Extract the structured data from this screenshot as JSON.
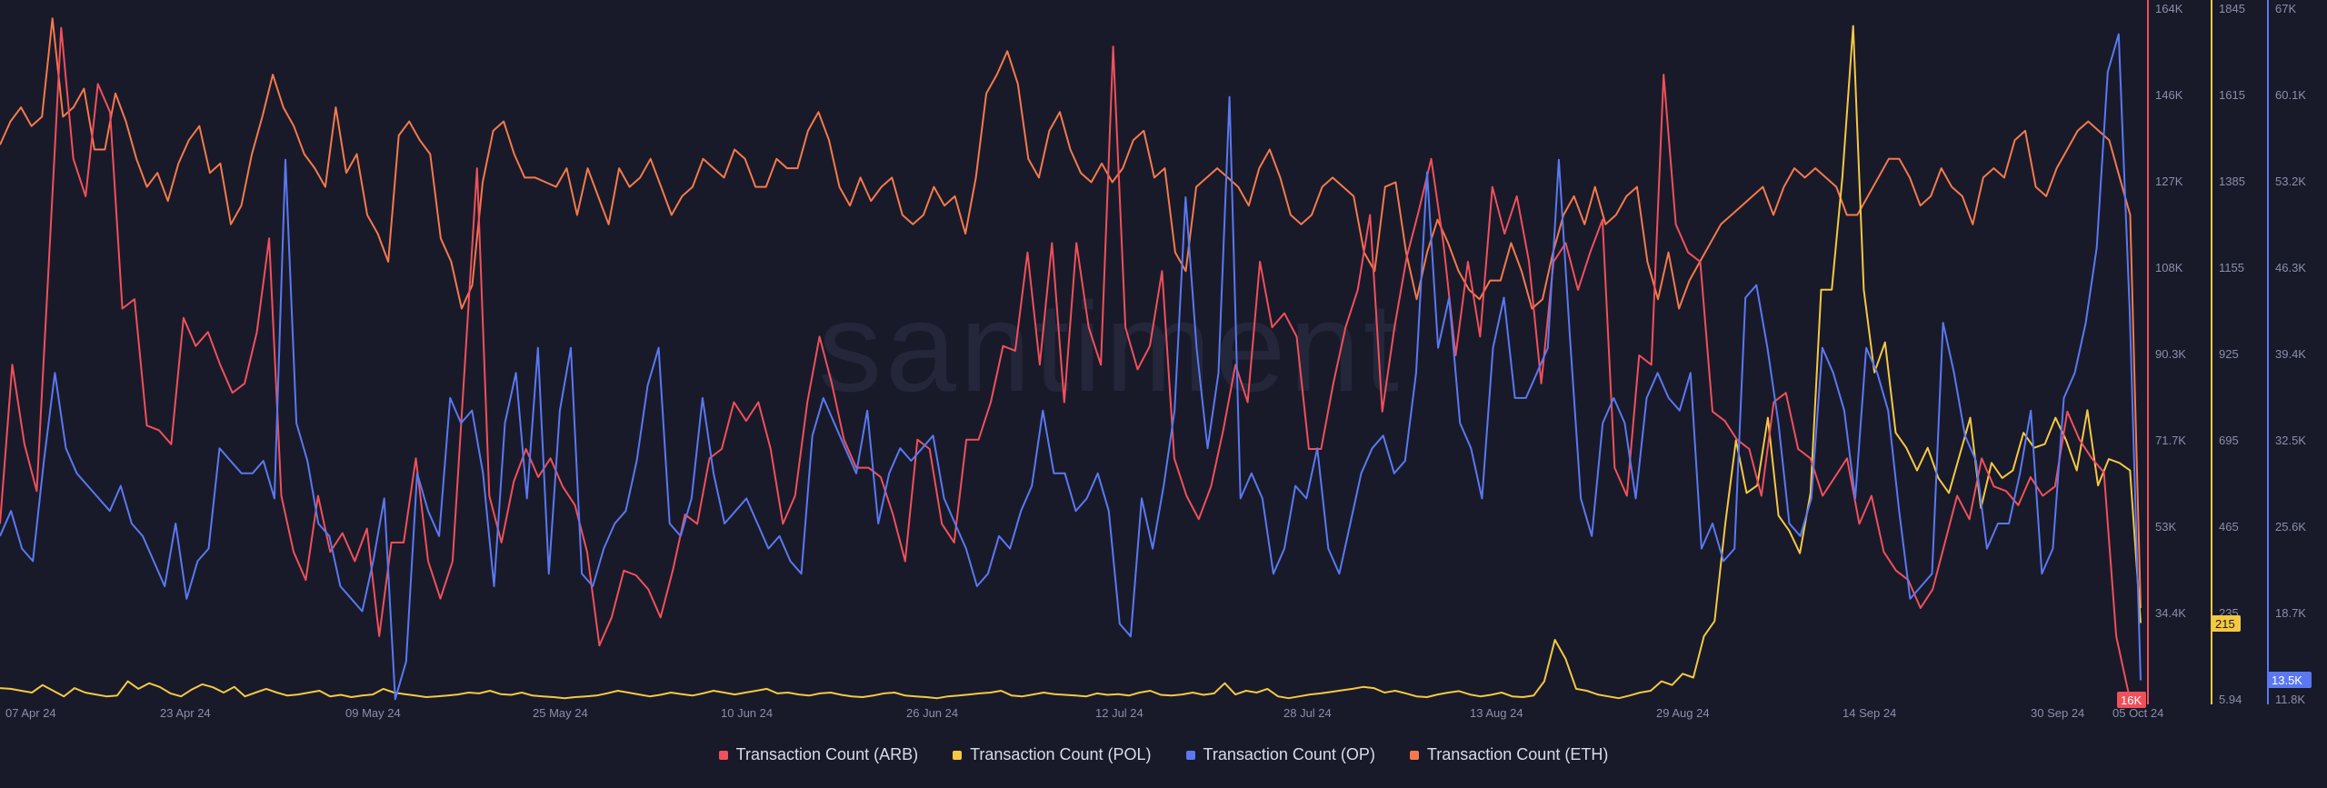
{
  "watermark": "santiment",
  "chart_data": {
    "type": "line",
    "title": "",
    "x_ticks": [
      "07 Apr 24",
      "23 Apr 24",
      "09 May 24",
      "25 May 24",
      "10 Jun 24",
      "26 Jun 24",
      "12 Jul 24",
      "28 Jul 24",
      "13 Aug 24",
      "29 Aug 24",
      "14 Sep 24",
      "30 Sep 24",
      "05 Oct 24"
    ],
    "axes": [
      {
        "id": "arb",
        "color": "#f0505a",
        "ticks": [
          "164K",
          "146K",
          "127K",
          "108K",
          "90.3K",
          "71.7K",
          "53K",
          "34.4K"
        ],
        "ylim": [
          16000,
          164000
        ],
        "last_value": "16K"
      },
      {
        "id": "pol",
        "color": "#f5c842",
        "ticks": [
          "1845",
          "1615",
          "1385",
          "1155",
          "925",
          "695",
          "465",
          "235",
          "5.94"
        ],
        "ylim": [
          5.94,
          1845
        ],
        "last_value": "215"
      },
      {
        "id": "op",
        "color": "#5a78f0",
        "ticks": [
          "67K",
          "60.1K",
          "53.2K",
          "46.3K",
          "39.4K",
          "32.5K",
          "25.6K",
          "18.7K",
          "11.8K"
        ],
        "ylim": [
          11800,
          67000
        ],
        "last_value": "13.5K"
      }
    ],
    "series": [
      {
        "name": "Transaction Count (ARB)",
        "axis": "arb",
        "color": "#f0505a",
        "values": [
          54000,
          88000,
          71000,
          61000,
          110000,
          160000,
          132000,
          124000,
          148000,
          142000,
          100000,
          102000,
          75000,
          74000,
          71000,
          98000,
          92000,
          95000,
          88000,
          82000,
          84000,
          95000,
          115000,
          60000,
          48000,
          42000,
          60000,
          48000,
          52000,
          46000,
          53000,
          30000,
          50000,
          50000,
          68000,
          46000,
          38000,
          46000,
          88000,
          130000,
          60000,
          50000,
          63000,
          70000,
          64000,
          68000,
          62000,
          58000,
          48000,
          28000,
          34000,
          44000,
          43000,
          40000,
          34000,
          44000,
          56000,
          54000,
          68000,
          70000,
          80000,
          76000,
          80000,
          70000,
          54000,
          60000,
          80000,
          94000,
          84000,
          72000,
          66000,
          66000,
          64000,
          56000,
          46000,
          72000,
          70000,
          54000,
          50000,
          72000,
          72000,
          80000,
          92000,
          91000,
          112000,
          88000,
          114000,
          80000,
          114000,
          96000,
          88000,
          156000,
          96000,
          87000,
          92000,
          108000,
          68000,
          60000,
          55000,
          62000,
          74000,
          88000,
          80000,
          110000,
          96000,
          99000,
          94000,
          70000,
          70000,
          84000,
          96000,
          104000,
          120000,
          78000,
          96000,
          111000,
          121000,
          132000,
          114000,
          90000,
          110000,
          94000,
          126000,
          116000,
          124000,
          110000,
          84000,
          110000,
          114000,
          104000,
          112000,
          119000,
          66000,
          60000,
          90000,
          88000,
          150000,
          118000,
          112000,
          110000,
          78000,
          76000,
          72000,
          70000,
          60000,
          80000,
          82000,
          70000,
          68000,
          60000,
          64000,
          68000,
          54000,
          60000,
          48000,
          44000,
          42000,
          36000,
          40000,
          50000,
          60000,
          55000,
          68000,
          62000,
          61000,
          58000,
          64000,
          60000,
          62000,
          78000,
          72000,
          68000,
          65000,
          30000,
          18000,
          16000
        ]
      },
      {
        "name": "Transaction Count (POL)",
        "axis": "pol",
        "color": "#f5c842",
        "values": [
          42,
          40,
          35,
          30,
          50,
          35,
          20,
          42,
          30,
          25,
          20,
          22,
          60,
          40,
          55,
          45,
          28,
          20,
          38,
          52,
          44,
          30,
          45,
          20,
          30,
          40,
          30,
          22,
          25,
          30,
          35,
          20,
          24,
          18,
          22,
          25,
          40,
          30,
          26,
          22,
          18,
          20,
          22,
          25,
          30,
          28,
          35,
          26,
          24,
          30,
          22,
          20,
          18,
          15,
          18,
          20,
          22,
          28,
          35,
          30,
          25,
          20,
          24,
          30,
          26,
          22,
          28,
          35,
          30,
          25,
          30,
          35,
          40,
          28,
          30,
          25,
          22,
          28,
          30,
          24,
          20,
          18,
          22,
          28,
          30,
          22,
          20,
          18,
          15,
          20,
          22,
          25,
          28,
          30,
          35,
          22,
          20,
          25,
          30,
          26,
          24,
          22,
          20,
          28,
          24,
          26,
          22,
          30,
          35,
          24,
          22,
          25,
          30,
          24,
          28,
          55,
          25,
          35,
          30,
          40,
          20,
          15,
          20,
          25,
          28,
          32,
          36,
          40,
          45,
          42,
          30,
          35,
          28,
          20,
          18,
          25,
          30,
          34,
          25,
          20,
          24,
          30,
          20,
          18,
          22,
          60,
          170,
          120,
          40,
          35,
          25,
          20,
          15,
          22,
          30,
          35,
          60,
          50,
          80,
          70,
          180,
          220,
          480,
          700,
          560,
          580,
          760,
          500,
          460,
          400,
          560,
          1100,
          1100,
          1400,
          1800,
          1100,
          880,
          960,
          720,
          680,
          620,
          680,
          600,
          560,
          660,
          760,
          520,
          640,
          600,
          620,
          720,
          680,
          690,
          760,
          700,
          620,
          780,
          580,
          650,
          640,
          620,
          215
        ]
      },
      {
        "name": "Transaction Count (OP)",
        "axis": "op",
        "color": "#5a78f0",
        "values": [
          25000,
          27000,
          24000,
          23000,
          31000,
          38000,
          32000,
          30000,
          29000,
          28000,
          27000,
          29000,
          26000,
          25000,
          23000,
          21000,
          26000,
          20000,
          23000,
          24000,
          32000,
          31000,
          30000,
          30000,
          31000,
          28000,
          55000,
          34000,
          31000,
          26000,
          25000,
          21000,
          20000,
          19000,
          23000,
          28000,
          12000,
          15000,
          30000,
          27000,
          25000,
          36000,
          34000,
          35000,
          30000,
          21000,
          34000,
          38000,
          28000,
          40000,
          22000,
          35000,
          40000,
          22000,
          21000,
          24000,
          26000,
          27000,
          31000,
          37000,
          40000,
          26000,
          25000,
          28000,
          36000,
          30000,
          26000,
          27000,
          28000,
          26000,
          24000,
          25000,
          23000,
          22000,
          33000,
          36000,
          34000,
          32000,
          30000,
          35000,
          26000,
          30000,
          32000,
          31000,
          32000,
          33000,
          28000,
          26000,
          24000,
          21000,
          22000,
          25000,
          24000,
          27000,
          29000,
          35000,
          30000,
          30000,
          27000,
          28000,
          30000,
          27000,
          18000,
          17000,
          28000,
          24000,
          29000,
          35000,
          52000,
          40000,
          32000,
          38000,
          60000,
          28000,
          30000,
          28000,
          22000,
          24000,
          29000,
          28000,
          32000,
          24000,
          22000,
          26000,
          30000,
          32000,
          33000,
          30000,
          31000,
          38000,
          54000,
          40000,
          44000,
          34000,
          32000,
          28000,
          40000,
          44000,
          36000,
          36000,
          38000,
          40000,
          55000,
          41000,
          28000,
          25000,
          34000,
          36000,
          34000,
          28000,
          36000,
          38000,
          36000,
          35000,
          38000,
          24000,
          26000,
          23000,
          24000,
          44000,
          45000,
          40000,
          34000,
          26000,
          25000,
          28000,
          40000,
          38000,
          35000,
          28000,
          40000,
          38000,
          35000,
          27000,
          20000,
          21000,
          22000,
          42000,
          38000,
          33000,
          31000,
          24000,
          26000,
          26000,
          30000,
          35000,
          22000,
          24000,
          36000,
          38000,
          42000,
          48000,
          62000,
          65000,
          43000,
          13500
        ]
      },
      {
        "name": "Transaction Count (ETH)",
        "axis": "arb",
        "color": "#f5794a",
        "values": [
          135000,
          140000,
          143000,
          139000,
          141000,
          162000,
          141000,
          143000,
          147000,
          134000,
          134000,
          146000,
          140000,
          132000,
          126000,
          129000,
          123000,
          131000,
          136000,
          139000,
          129000,
          131000,
          118000,
          122000,
          133000,
          141000,
          150000,
          143000,
          139000,
          133000,
          130000,
          126000,
          143000,
          129000,
          133000,
          120000,
          116000,
          110000,
          137000,
          140000,
          136000,
          133000,
          115000,
          110000,
          100000,
          105000,
          127000,
          138000,
          140000,
          133000,
          128000,
          128000,
          127000,
          126000,
          130000,
          120000,
          130000,
          124000,
          118000,
          130000,
          126000,
          128000,
          132000,
          126000,
          120000,
          124000,
          126000,
          132000,
          130000,
          128000,
          134000,
          132000,
          126000,
          126000,
          132000,
          130000,
          130000,
          138000,
          142000,
          136000,
          126000,
          122000,
          128000,
          123000,
          126000,
          128000,
          120000,
          118000,
          120000,
          126000,
          122000,
          124000,
          116000,
          128000,
          146000,
          150000,
          155000,
          148000,
          132000,
          128000,
          138000,
          142000,
          134000,
          129000,
          127000,
          131000,
          127000,
          130000,
          136000,
          138000,
          128000,
          130000,
          112000,
          108000,
          126000,
          128000,
          130000,
          128000,
          126000,
          122000,
          130000,
          134000,
          128000,
          120000,
          118000,
          120000,
          126000,
          128000,
          126000,
          124000,
          112000,
          108000,
          126000,
          127000,
          112000,
          102000,
          112000,
          119000,
          114000,
          108000,
          104000,
          102000,
          106000,
          106000,
          114000,
          108000,
          100000,
          102000,
          112000,
          120000,
          124000,
          118000,
          126000,
          118000,
          120000,
          124000,
          126000,
          110000,
          102000,
          112000,
          100000,
          106000,
          110000,
          114000,
          118000,
          120000,
          122000,
          124000,
          126000,
          120000,
          126000,
          130000,
          128000,
          130000,
          128000,
          126000,
          120000,
          120000,
          124000,
          128000,
          132000,
          132000,
          128000,
          122000,
          124000,
          130000,
          126000,
          124000,
          118000,
          128000,
          130000,
          128000,
          136000,
          138000,
          126000,
          124000,
          130000,
          134000,
          138000,
          140000,
          138000,
          136000,
          128000,
          120000,
          36000
        ]
      }
    ]
  },
  "legend": {
    "items": [
      {
        "label": "Transaction Count (ARB)",
        "color": "#f0505a"
      },
      {
        "label": "Transaction Count (POL)",
        "color": "#f5c842"
      },
      {
        "label": "Transaction Count (OP)",
        "color": "#5a78f0"
      },
      {
        "label": "Transaction Count (ETH)",
        "color": "#f5794a"
      }
    ]
  }
}
